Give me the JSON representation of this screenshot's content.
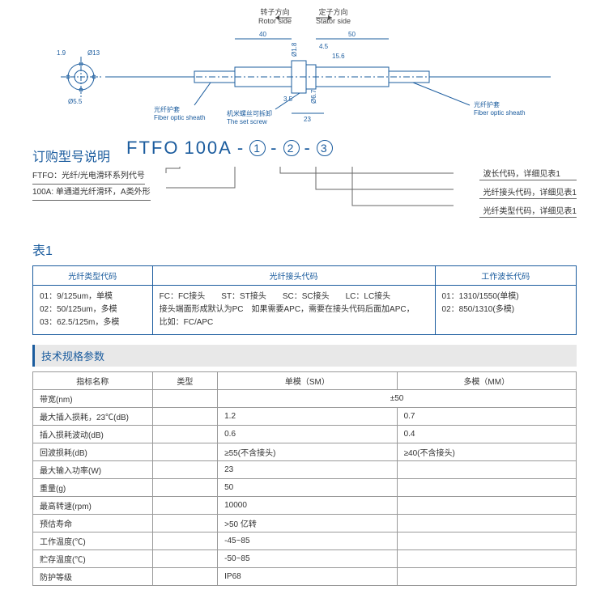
{
  "drawing": {
    "rotor_cn": "转子方向",
    "rotor_en": "Rotor side",
    "stator_cn": "定子方向",
    "stator_en": "Stator side",
    "dim_40": "40",
    "dim_50": "50",
    "dim_45": "4.5",
    "dim_156": "15.6",
    "dim_23": "23",
    "dim_35": "3.5",
    "dim_19": "1.9",
    "dim_13": "Ø13",
    "dim_55": "Ø5.5",
    "dim_67": "Ø6.7",
    "dim_18": "Ø1.8",
    "sheath_cn": "光纤护套",
    "sheath_en": "Fiber optic sheath",
    "setscrew_cn": "机米螺丝可拆卸",
    "setscrew_en": "The set screw"
  },
  "ordering": {
    "title": "订购型号说明",
    "prefix": "FTFO",
    "mid": "100A",
    "c1": "1",
    "c2": "2",
    "c3": "3",
    "left_line1": "FTFO：光纤/光电滑环系列代号",
    "left_line2": "100A: 单通道光纤滑环，A类外形",
    "right_line1": "波长代码，详细见表1",
    "right_line2": "光纤接头代码，详细见表1",
    "right_line3": "光纤类型代码，详细见表1"
  },
  "table1": {
    "title": "表1",
    "h1": "光纤类型代码",
    "h2": "光纤接头代码",
    "h3": "工作波长代码",
    "c1_l1": "01：9/125um，单模",
    "c1_l2": "02：50/125um，多模",
    "c1_l3": "03：62.5/125m，多模",
    "c2_l1": "FC：FC接头　　ST：ST接头　　SC：SC接头　　LC：LC接头",
    "c2_l2": "接头端面形成默认为PC　如果需要APC，需要在接头代码后面加APC，",
    "c2_l3": "比如：FC/APC",
    "c3_l1": "01：1310/1550(单模)",
    "c3_l2": "02：850/1310(多模)"
  },
  "spec": {
    "title": "技术规格参数",
    "h_param": "指标名称",
    "h_type": "类型",
    "h_sm": "单模（SM）",
    "h_mm": "多模（MM）",
    "rows": [
      {
        "p": "带宽(nm)",
        "t": "",
        "sm": "",
        "mm": "",
        "span": "±50"
      },
      {
        "p": "最大插入损耗，23℃(dB)",
        "t": "",
        "sm": "1.2",
        "mm": "0.7"
      },
      {
        "p": "插入损耗波动(dB)",
        "t": "",
        "sm": "0.6",
        "mm": "0.4"
      },
      {
        "p": "回波损耗(dB)",
        "t": "",
        "sm": "≥55(不含接头)",
        "mm": "≥40(不含接头)"
      },
      {
        "p": "最大输入功率(W)",
        "t": "",
        "sm": "23",
        "mm": ""
      },
      {
        "p": "重量(g)",
        "t": "",
        "sm": "50",
        "mm": ""
      },
      {
        "p": "最高转速(rpm)",
        "t": "",
        "sm": "10000",
        "mm": ""
      },
      {
        "p": "预估寿命",
        "t": "",
        "sm": ">50 亿转",
        "mm": ""
      },
      {
        "p": "工作温度(℃)",
        "t": "",
        "sm": "-45~85",
        "mm": ""
      },
      {
        "p": "贮存温度(℃)",
        "t": "",
        "sm": "-50~85",
        "mm": ""
      },
      {
        "p": "防护等级",
        "t": "",
        "sm": "IP68",
        "mm": ""
      }
    ]
  }
}
